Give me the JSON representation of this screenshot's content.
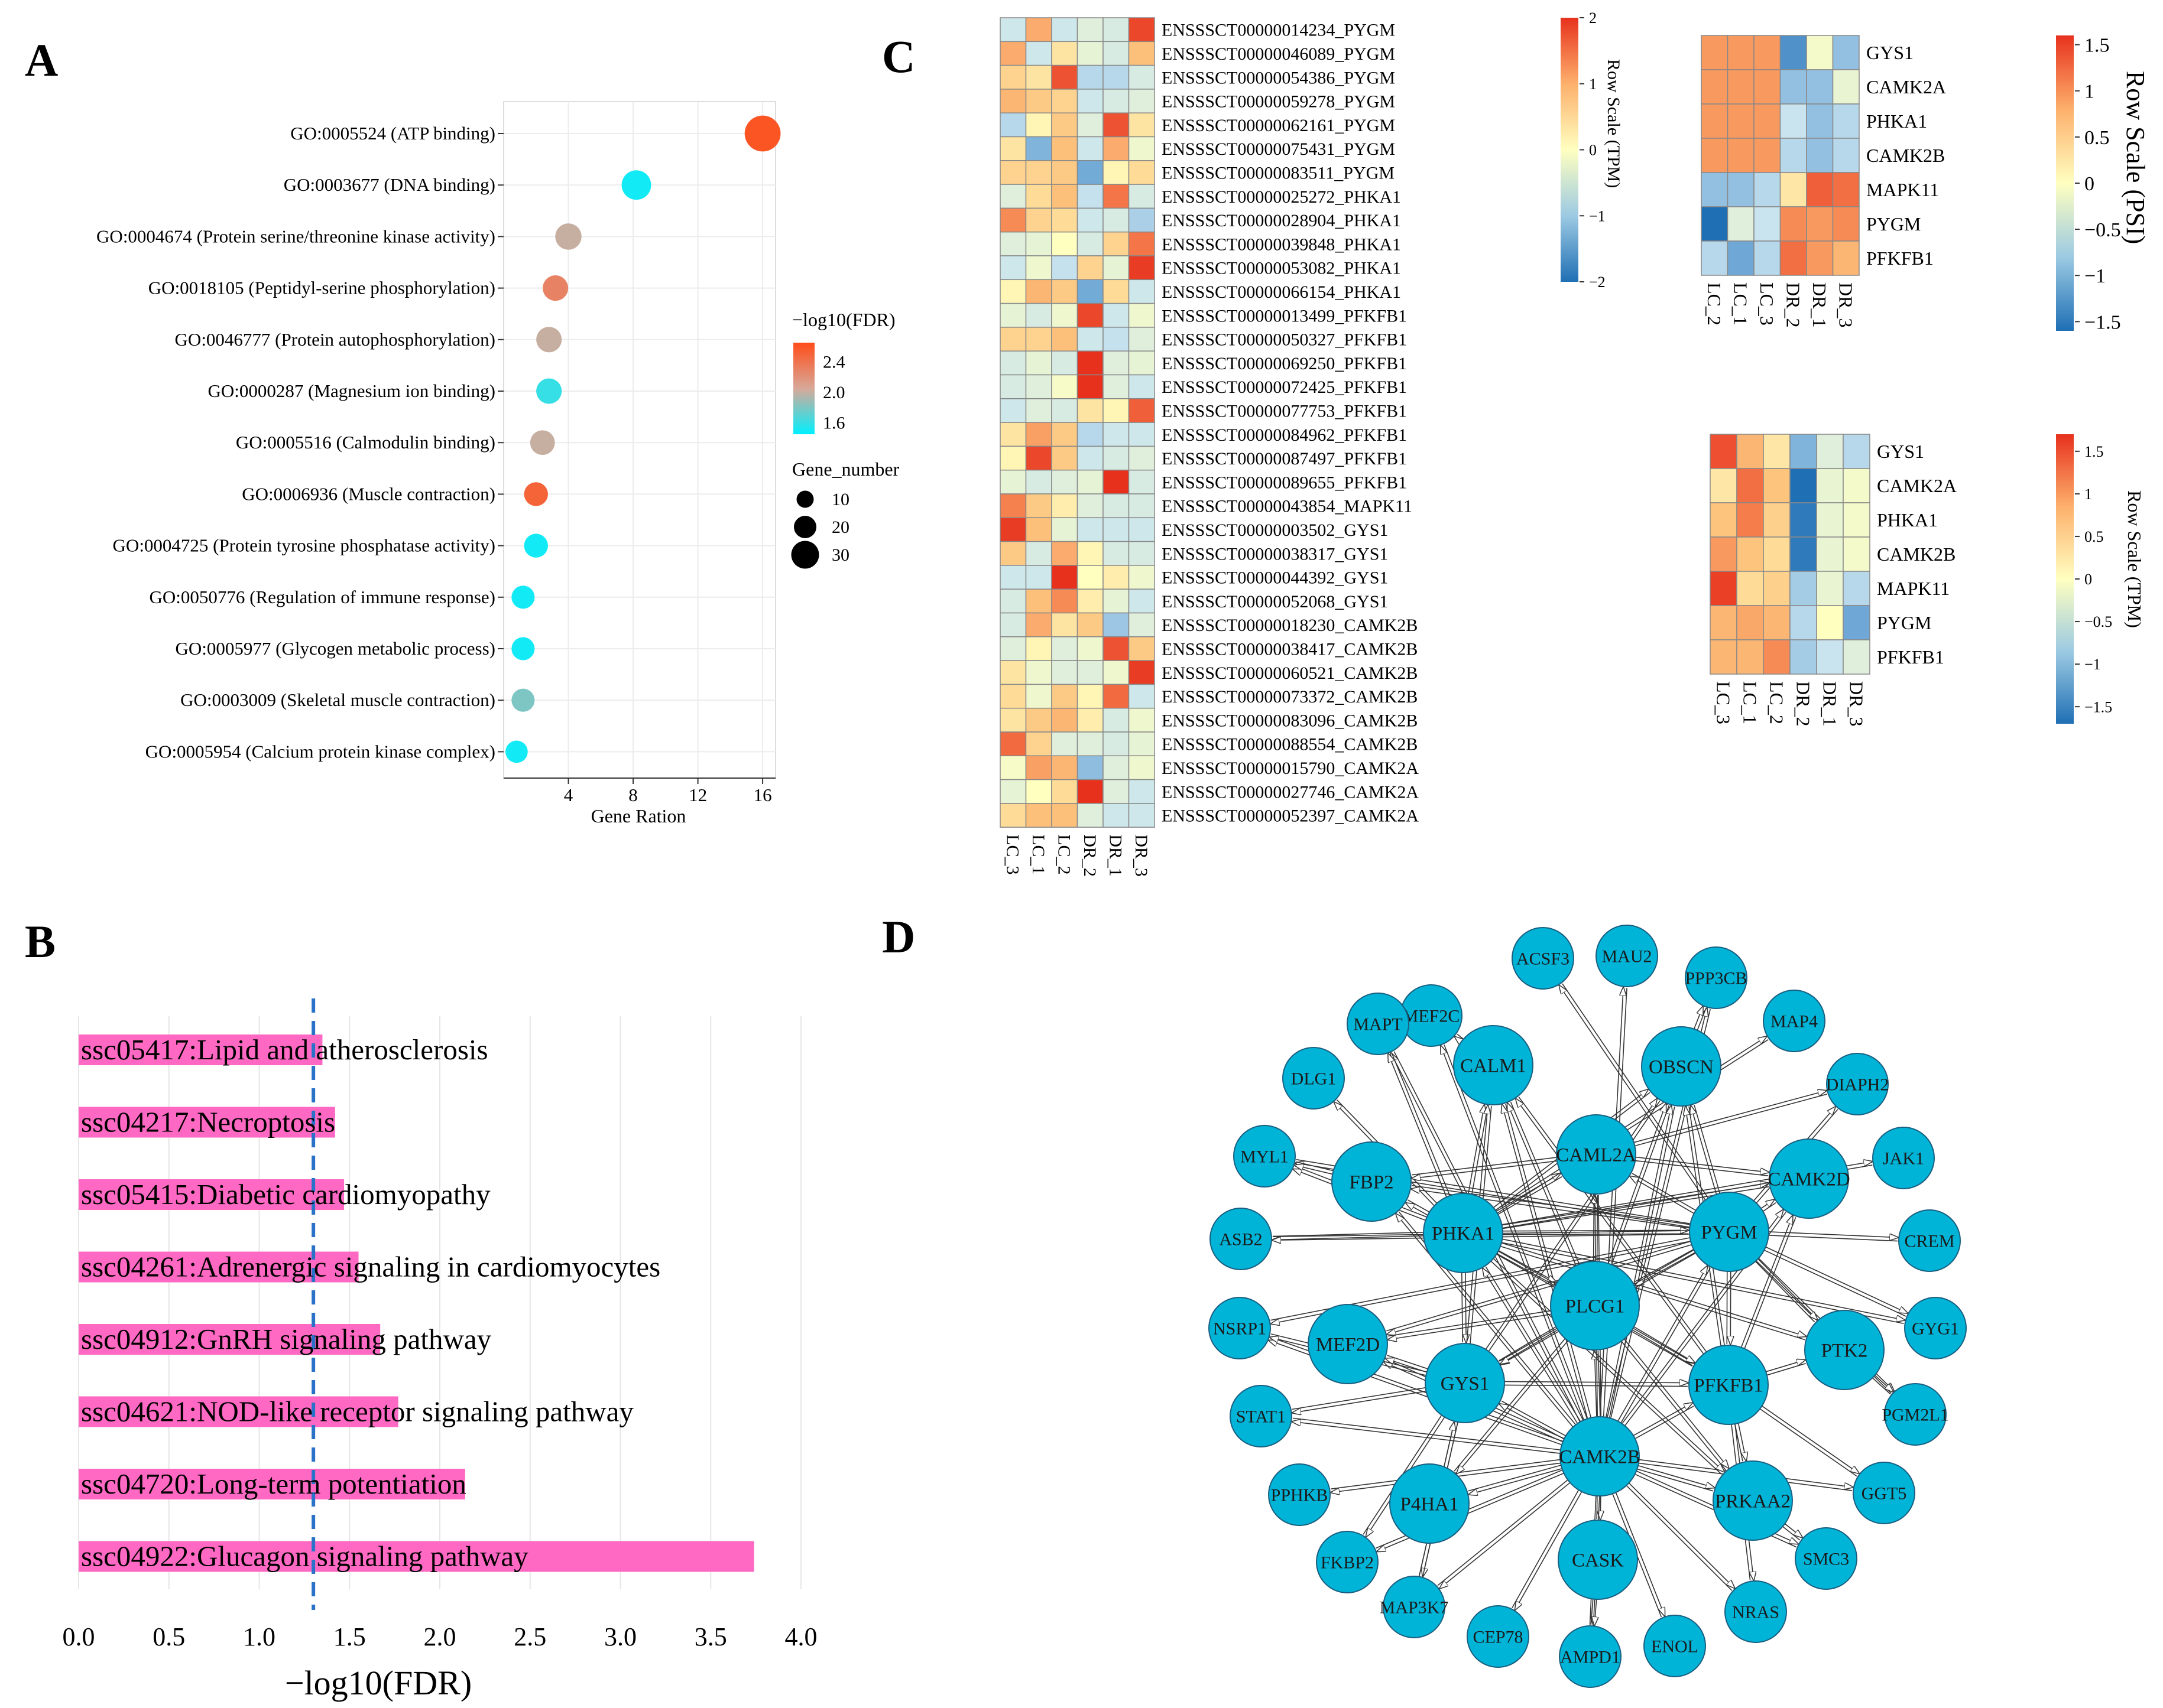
{
  "panel_labels": {
    "a": "A",
    "b": "B",
    "c": "C",
    "d": "D"
  },
  "colors": {
    "grad_low": "#00f0ff",
    "grad_mid": "#d8a898",
    "grad_high": "#ff4d1a",
    "bar": "#ff69c4",
    "dashed": "#2a72c8",
    "node": "#00b4d8",
    "node_stroke": "#1a5f80",
    "heat": [
      "#1f6fb4",
      "#6fa8d6",
      "#c9e4ef",
      "#ffffc0",
      "#fdc47e",
      "#f57d4c",
      "#e7311d"
    ]
  },
  "chart_data": [
    {
      "id": "A",
      "type": "scatter",
      "xlabel": "Gene Ration",
      "xticks": [
        4,
        8,
        12,
        16
      ],
      "xlim": [
        0,
        16.8
      ],
      "legend_color_title": "−log10(FDR)",
      "legend_color_ticks": [
        "2.4",
        "2.0",
        "1.6"
      ],
      "color_range": [
        1.45,
        2.65
      ],
      "legend_size_title": "Gene_number",
      "legend_size_values": [
        10,
        20,
        30
      ],
      "terms": [
        {
          "label": "GO:0005524 (ATP binding)",
          "ratio": 16.0,
          "fdr": 2.6,
          "genes": 30
        },
        {
          "label": "GO:0003677 (DNA binding)",
          "ratio": 8.2,
          "fdr": 1.5,
          "genes": 22
        },
        {
          "label": "GO:0004674 (Protein serine/threonine kinase activity)",
          "ratio": 4.0,
          "fdr": 2.0,
          "genes": 18
        },
        {
          "label": "GO:0018105 (Peptidyl-serine phosphorylation)",
          "ratio": 3.2,
          "fdr": 2.3,
          "genes": 17
        },
        {
          "label": "GO:0046777 (Protein autophosphorylation)",
          "ratio": 2.8,
          "fdr": 2.0,
          "genes": 17
        },
        {
          "label": "GO:0000287 (Magnesium ion binding)",
          "ratio": 2.8,
          "fdr": 1.6,
          "genes": 17
        },
        {
          "label": "GO:0005516 (Calmodulin binding)",
          "ratio": 2.4,
          "fdr": 2.0,
          "genes": 16
        },
        {
          "label": "GO:0006936 (Muscle contraction)",
          "ratio": 2.0,
          "fdr": 2.5,
          "genes": 15
        },
        {
          "label": "GO:0004725 (Protein tyrosine phosphatase activity)",
          "ratio": 2.0,
          "fdr": 1.5,
          "genes": 15
        },
        {
          "label": "GO:0050776 (Regulation of immune response)",
          "ratio": 1.2,
          "fdr": 1.5,
          "genes": 14
        },
        {
          "label": "GO:0005977 (Glycogen metabolic process)",
          "ratio": 1.2,
          "fdr": 1.5,
          "genes": 14
        },
        {
          "label": "GO:0003009 (Skeletal muscle contraction)",
          "ratio": 1.2,
          "fdr": 1.8,
          "genes": 14
        },
        {
          "label": "GO:0005954 (Calcium protein kinase complex)",
          "ratio": 0.8,
          "fdr": 1.5,
          "genes": 13
        }
      ]
    },
    {
      "id": "B",
      "type": "bar",
      "xlabel": "−log10(FDR)",
      "xticks": [
        "0.0",
        "0.5",
        "1.0",
        "1.5",
        "2.0",
        "2.5",
        "3.0",
        "3.5",
        "4.0"
      ],
      "xlim": [
        0,
        4.0
      ],
      "threshold": 1.3,
      "categories": [
        "ssc05417:Lipid and atherosclerosis",
        "ssc04217:Necroptosis",
        "ssc05415:Diabetic cardiomyopathy",
        "ssc04261:Adrenergic signaling in cardiomyocytes",
        "ssc04912:GnRH signaling pathway",
        "ssc04621:NOD-like receptor signaling pathway",
        "ssc04720:Long-term potentiation",
        "ssc04922:Glucagon signaling pathway"
      ],
      "values": [
        1.35,
        1.42,
        1.47,
        1.55,
        1.67,
        1.77,
        2.14,
        3.74
      ]
    },
    {
      "id": "C_left",
      "type": "heatmap",
      "legend_title": "Row Scale (TPM)",
      "legend_ticks": [
        "2",
        "1",
        "0",
        "−1",
        "−2"
      ],
      "columns": [
        "LC_3",
        "LC_1",
        "LC_2",
        "DR_2",
        "DR_1",
        "DR_3"
      ],
      "rows": [
        "ENSSSCT00000014234_PYGM",
        "ENSSSCT00000046089_PYGM",
        "ENSSSCT00000054386_PYGM",
        "ENSSSCT00000059278_PYGM",
        "ENSSSCT00000062161_PYGM",
        "ENSSSCT00000075431_PYGM",
        "ENSSSCT00000083511_PYGM",
        "ENSSSCT00000025272_PHKA1",
        "ENSSSCT00000028904_PHKA1",
        "ENSSSCT00000039848_PHKA1",
        "ENSSSCT00000053082_PHKA1",
        "ENSSSCT00000066154_PHKA1",
        "ENSSSCT00000013499_PFKFB1",
        "ENSSSCT00000050327_PFKFB1",
        "ENSSSCT00000069250_PFKFB1",
        "ENSSSCT00000072425_PFKFB1",
        "ENSSSCT00000077753_PFKFB1",
        "ENSSSCT00000084962_PFKFB1",
        "ENSSSCT00000087497_PFKFB1",
        "ENSSSCT00000089655_PFKFB1",
        "ENSSSCT00000043854_MAPK11",
        "ENSSSCT00000003502_GYS1",
        "ENSSSCT00000038317_GYS1",
        "ENSSSCT00000044392_GYS1",
        "ENSSSCT00000052068_GYS1",
        "ENSSSCT00000018230_CAMK2B",
        "ENSSSCT00000038417_CAMK2B",
        "ENSSSCT00000060521_CAMK2B",
        "ENSSSCT00000073372_CAMK2B",
        "ENSSSCT00000083096_CAMK2B",
        "ENSSSCT00000088554_CAMK2B",
        "ENSSSCT00000015790_CAMK2A",
        "ENSSSCT00000027746_CAMK2A",
        "ENSSSCT00000052397_CAMK2A"
      ],
      "values": [
        [
          -0.6,
          0.9,
          -0.6,
          -0.4,
          -0.5,
          1.8
        ],
        [
          0.9,
          -0.6,
          0.3,
          -0.3,
          -0.5,
          0.7
        ],
        [
          0.5,
          0.3,
          1.7,
          -0.8,
          -0.8,
          -0.5
        ],
        [
          0.8,
          0.6,
          0.5,
          -0.6,
          -0.5,
          -0.4
        ],
        [
          -0.8,
          0.1,
          0.6,
          -0.4,
          1.7,
          0.3
        ],
        [
          0.3,
          -1.2,
          0.7,
          -0.6,
          0.9,
          -0.2
        ],
        [
          0.5,
          0.5,
          0.6,
          -1.3,
          0.1,
          0.4
        ],
        [
          -0.4,
          0.4,
          0.7,
          -0.7,
          1.4,
          -0.5
        ],
        [
          1.2,
          0.5,
          0.4,
          -0.6,
          -0.5,
          -0.9
        ],
        [
          -0.4,
          -0.3,
          0.0,
          -0.5,
          0.5,
          1.4
        ],
        [
          -0.6,
          -0.2,
          -0.7,
          0.5,
          -0.3,
          1.9
        ],
        [
          0.1,
          0.8,
          0.6,
          -1.3,
          0.4,
          -0.6
        ],
        [
          -0.3,
          -0.5,
          -0.2,
          1.8,
          -0.6,
          -0.2
        ],
        [
          0.5,
          0.5,
          0.7,
          -0.6,
          -0.7,
          -0.4
        ],
        [
          -0.5,
          -0.3,
          -0.5,
          2.0,
          -0.4,
          -0.3
        ],
        [
          -0.5,
          -0.4,
          -0.1,
          2.0,
          -0.4,
          -0.6
        ],
        [
          -0.6,
          -0.4,
          -0.5,
          0.3,
          0.1,
          1.6
        ],
        [
          0.3,
          1.0,
          0.6,
          -0.8,
          -0.6,
          -0.6
        ],
        [
          0.1,
          1.8,
          0.6,
          -0.6,
          -0.5,
          -0.4
        ],
        [
          -0.3,
          -0.5,
          -0.4,
          -0.3,
          2.0,
          -0.5
        ],
        [
          1.3,
          0.6,
          0.2,
          -0.4,
          -0.5,
          -0.5
        ],
        [
          1.9,
          0.7,
          -0.3,
          -0.6,
          -0.6,
          -0.6
        ],
        [
          0.6,
          -0.5,
          0.9,
          0.1,
          -0.5,
          -0.5
        ],
        [
          -0.6,
          -0.6,
          2.0,
          0.0,
          0.2,
          -0.2
        ],
        [
          -0.5,
          0.7,
          1.2,
          0.2,
          -0.3,
          -0.6
        ],
        [
          -0.5,
          0.9,
          0.3,
          0.6,
          -1.0,
          -0.4
        ],
        [
          -0.4,
          0.1,
          -0.4,
          -0.2,
          1.7,
          0.6
        ],
        [
          0.3,
          -0.2,
          -0.4,
          -0.4,
          -0.2,
          1.9
        ],
        [
          0.4,
          -0.2,
          0.6,
          0.1,
          1.5,
          -0.6
        ],
        [
          0.3,
          0.6,
          0.8,
          0.2,
          -0.5,
          -0.2
        ],
        [
          1.5,
          0.5,
          -0.4,
          -0.4,
          -0.5,
          -0.3
        ],
        [
          -0.1,
          1.0,
          0.8,
          -1.1,
          -0.4,
          -0.2
        ],
        [
          -0.3,
          0.0,
          0.4,
          2.0,
          -0.4,
          -0.6
        ],
        [
          0.4,
          0.7,
          0.7,
          -0.4,
          -0.6,
          -0.6
        ]
      ]
    },
    {
      "id": "C_topright",
      "type": "heatmap",
      "legend_title": "Row Scale (PSI)",
      "legend_ticks": [
        "1.5",
        "1",
        "0.5",
        "0",
        "−0.5",
        "−1",
        "−1.5"
      ],
      "columns": [
        "LC_2",
        "LC_1",
        "LC_3",
        "DR_2",
        "DR_1",
        "DR_3"
      ],
      "rows": [
        "GYS1",
        "CAMK2A",
        "PHKA1",
        "CAMK2B",
        "MAPK11",
        "PYGM",
        "PFKFB1"
      ],
      "values": [
        [
          0.8,
          0.8,
          0.8,
          -1.2,
          -0.1,
          -0.8
        ],
        [
          0.8,
          0.8,
          0.8,
          -0.8,
          -0.8,
          -0.2
        ],
        [
          0.8,
          0.8,
          0.8,
          -0.5,
          -0.8,
          -0.6
        ],
        [
          0.8,
          0.8,
          0.8,
          -0.6,
          -0.8,
          -0.6
        ],
        [
          -0.8,
          -0.8,
          -0.6,
          0.2,
          1.2,
          1.1
        ],
        [
          -1.5,
          -0.3,
          -0.5,
          0.9,
          0.8,
          0.9
        ],
        [
          -0.6,
          -1.0,
          -0.6,
          1.1,
          0.8,
          0.6
        ]
      ]
    },
    {
      "id": "C_bottomright",
      "type": "heatmap",
      "legend_title": "Row Scale (TPM)",
      "legend_ticks": [
        "1.5",
        "1",
        "0.5",
        "0",
        "−0.5",
        "−1",
        "−1.5"
      ],
      "columns": [
        "LC_3",
        "LC_1",
        "LC_2",
        "DR_2",
        "DR_1",
        "DR_3"
      ],
      "rows": [
        "GYS1",
        "CAMK2A",
        "PHKA1",
        "CAMK2B",
        "MAPK11",
        "PYGM",
        "PFKFB1"
      ],
      "values": [
        [
          1.3,
          0.6,
          0.2,
          -0.9,
          -0.3,
          -0.6
        ],
        [
          0.2,
          1.1,
          0.5,
          -1.5,
          -0.2,
          -0.1
        ],
        [
          0.5,
          1.0,
          0.4,
          -1.4,
          -0.2,
          -0.1
        ],
        [
          0.8,
          0.5,
          0.3,
          -1.4,
          -0.2,
          -0.1
        ],
        [
          1.4,
          0.3,
          0.4,
          -0.7,
          -0.2,
          -0.6
        ],
        [
          0.6,
          0.7,
          0.6,
          -0.6,
          0.0,
          -1.0
        ],
        [
          0.6,
          0.6,
          0.9,
          -0.7,
          -0.5,
          -0.3
        ]
      ]
    },
    {
      "id": "D",
      "type": "network",
      "nodes": [
        "MEF2C",
        "ACSF3",
        "MAU2",
        "PPP3CB",
        "MAP4",
        "DIAPH2",
        "JAK1",
        "CREM",
        "GYG1",
        "PGM2L1",
        "GGT5",
        "SMC3",
        "NRAS",
        "ENOL",
        "AMPD1",
        "CEP78",
        "MAP3K7",
        "FKBP2",
        "PPHKB",
        "STAT1",
        "NSRP1",
        "ASB2",
        "MYL1",
        "DLG1",
        "MAPT",
        "CALM1",
        "OBSCN",
        "CAML2A",
        "CAMK2D",
        "FBP2",
        "PHKA1",
        "PYGM",
        "PLCG1",
        "MEF2D",
        "PTK2",
        "GYS1",
        "PFKFB1",
        "CAMK2B",
        "P4HA1",
        "PRKAA2",
        "CASK"
      ],
      "edges": [
        [
          "CAMK2B",
          "PLCG1"
        ],
        [
          "CAMK2B",
          "GYS1"
        ],
        [
          "CAMK2B",
          "PFKFB1"
        ],
        [
          "CAMK2B",
          "PHKA1"
        ],
        [
          "CAMK2B",
          "PYGM"
        ],
        [
          "CAMK2B",
          "CAML2A"
        ],
        [
          "CAMK2B",
          "CASK"
        ],
        [
          "CAMK2B",
          "PRKAA2"
        ],
        [
          "CAMK2B",
          "P4HA1"
        ],
        [
          "CAMK2B",
          "MEF2D"
        ],
        [
          "CAMK2B",
          "FBP2"
        ],
        [
          "CAMK2B",
          "CALM1"
        ],
        [
          "CAMK2B",
          "OBSCN"
        ],
        [
          "CAMK2B",
          "CAMK2D"
        ],
        [
          "CAMK2B",
          "AMPD1"
        ],
        [
          "CAMK2B",
          "ENOL"
        ],
        [
          "CAMK2B",
          "NRAS"
        ],
        [
          "CAMK2B",
          "CEP78"
        ],
        [
          "CAMK2B",
          "MAP3K7"
        ],
        [
          "CAMK2B",
          "FKBP2"
        ],
        [
          "CAMK2B",
          "PPHKB"
        ],
        [
          "CAMK2B",
          "STAT1"
        ],
        [
          "CAMK2B",
          "SMC3"
        ],
        [
          "CAMK2B",
          "GGT5"
        ],
        [
          "CAMK2B",
          "NSRP1"
        ],
        [
          "CAMK2B",
          "MEF2C"
        ],
        [
          "CAMK2B",
          "MAPT"
        ],
        [
          "CAMK2B",
          "MAU2"
        ],
        [
          "CAMK2B",
          "PPP3CB"
        ],
        [
          "PHKA1",
          "PYGM"
        ],
        [
          "PHKA1",
          "PLCG1"
        ],
        [
          "PHKA1",
          "GYS1"
        ],
        [
          "PHKA1",
          "PFKFB1"
        ],
        [
          "PHKA1",
          "CAML2A"
        ],
        [
          "PHKA1",
          "FBP2"
        ],
        [
          "PHKA1",
          "MYL1"
        ],
        [
          "PHKA1",
          "ASB2"
        ],
        [
          "PHKA1",
          "DLG1"
        ],
        [
          "PHKA1",
          "MAPT"
        ],
        [
          "PHKA1",
          "CALM1"
        ],
        [
          "PHKA1",
          "CAMK2D"
        ],
        [
          "PHKA1",
          "JAK1"
        ],
        [
          "PHKA1",
          "GYG1"
        ],
        [
          "PHKA1",
          "PTK2"
        ],
        [
          "PHKA1",
          "OBSCN"
        ],
        [
          "PHKA1",
          "MAP4"
        ],
        [
          "PHKA1",
          "PRKAA2"
        ],
        [
          "PYGM",
          "PLCG1"
        ],
        [
          "PYGM",
          "GYS1"
        ],
        [
          "PYGM",
          "PFKFB1"
        ],
        [
          "PYGM",
          "CAML2A"
        ],
        [
          "PYGM",
          "FBP2"
        ],
        [
          "PYGM",
          "CAMK2D"
        ],
        [
          "PYGM",
          "GYG1"
        ],
        [
          "PYGM",
          "PGM2L1"
        ],
        [
          "PYGM",
          "CREM"
        ],
        [
          "PYGM",
          "DIAPH2"
        ],
        [
          "PYGM",
          "ACSF3"
        ],
        [
          "PYGM",
          "MEF2D"
        ],
        [
          "PYGM",
          "NSRP1"
        ],
        [
          "PYGM",
          "ASB2"
        ],
        [
          "PYGM",
          "MYL1"
        ],
        [
          "PYGM",
          "OBSCN"
        ],
        [
          "PYGM",
          "PTK2"
        ],
        [
          "PLCG1",
          "GYS1"
        ],
        [
          "PLCG1",
          "PFKFB1"
        ],
        [
          "PLCG1",
          "CALM1"
        ],
        [
          "PLCG1",
          "OBSCN"
        ],
        [
          "PLCG1",
          "MEF2D"
        ],
        [
          "PLCG1",
          "CAML2A"
        ],
        [
          "PLCG1",
          "PRKAA2"
        ],
        [
          "PLCG1",
          "P4HA1"
        ],
        [
          "GYS1",
          "PFKFB1"
        ],
        [
          "GYS1",
          "STAT1"
        ],
        [
          "GYS1",
          "FKBP2"
        ],
        [
          "GYS1",
          "MAP3K7"
        ],
        [
          "GYS1",
          "MEF2D"
        ],
        [
          "GYS1",
          "NSRP1"
        ],
        [
          "GYS1",
          "OBSCN"
        ],
        [
          "GYS1",
          "CALM1"
        ],
        [
          "PFKFB1",
          "GGT5"
        ],
        [
          "PFKFB1",
          "PRKAA2"
        ],
        [
          "PFKFB1",
          "PTK2"
        ],
        [
          "PFKFB1",
          "OBSCN"
        ],
        [
          "PFKFB1",
          "CAMK2D"
        ],
        [
          "PFKFB1",
          "NRAS"
        ],
        [
          "PFKFB1",
          "CALM1"
        ],
        [
          "CAML2A",
          "FBP2"
        ],
        [
          "CAML2A",
          "CAMK2D"
        ],
        [
          "CAML2A",
          "DIAPH2"
        ],
        [
          "PTK2",
          "PGM2L1"
        ],
        [
          "PRKAA2",
          "SMC3"
        ],
        [
          "FBP2",
          "MYL1"
        ],
        [
          "OBSCN",
          "PPP3CB"
        ],
        [
          "CALM1",
          "MEF2C"
        ],
        [
          "CASK",
          "AMPD1"
        ],
        [
          "MAP3K7",
          "GYS1"
        ]
      ]
    }
  ]
}
